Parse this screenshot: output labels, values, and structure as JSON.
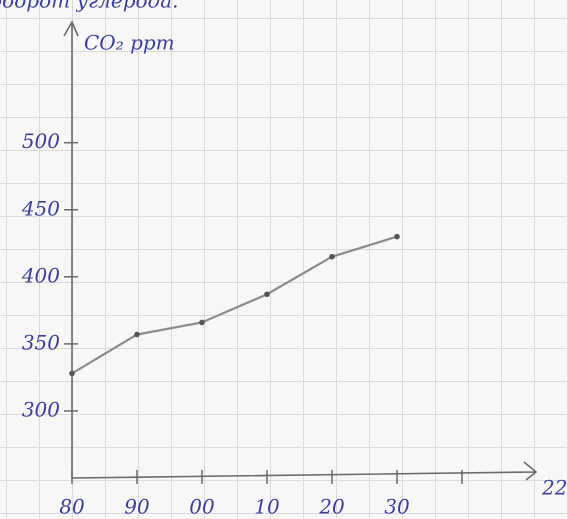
{
  "chart_data": {
    "type": "line",
    "title": "оборот углерода.",
    "ylabel": "CO₂ ppm",
    "xlabel": "22",
    "categories": [
      "80",
      "90",
      "00",
      "10",
      "20",
      "30",
      null
    ],
    "series": [
      {
        "name": "CO₂",
        "color": "#8a8a8a",
        "values": [
          328,
          357,
          366,
          387,
          415,
          430,
          null
        ]
      }
    ],
    "ylim": [
      250,
      590
    ],
    "yticks": [
      300,
      350,
      400,
      450,
      500
    ]
  }
}
